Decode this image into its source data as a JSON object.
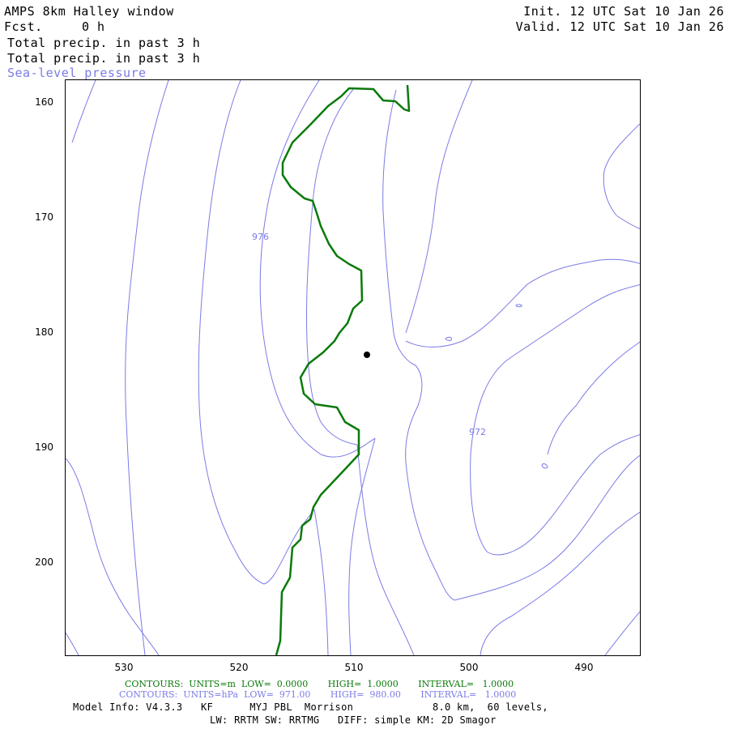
{
  "header": {
    "title": "AMPS 8km Halley window",
    "fcst_label": "Fcst.",
    "fcst_value": "0 h",
    "field1": "Total precip. in past 3 h",
    "field2": "Total precip. in past 3 h",
    "field3": "Sea-level pressure",
    "init": "Init. 12 UTC Sat 10 Jan 26",
    "valid": "Valid. 12 UTC Sat 10 Jan 26"
  },
  "axes": {
    "y_ticks": [
      "160",
      "170",
      "180",
      "190",
      "200"
    ],
    "x_ticks": [
      "530",
      "520",
      "510",
      "500",
      "490"
    ]
  },
  "contour_labels": {
    "pressure_976": "976",
    "pressure_972": "972"
  },
  "footer": {
    "contours_green": "CONTOURS:  UNITS=m  LOW=  0.0000       HIGH=  1.0000       INTERVAL=   1.0000",
    "contours_blue": "CONTOURS:  UNITS=hPa  LOW=  971.00       HIGH=  980.00       INTERVAL=   1.0000",
    "model_info": "Model Info: V4.3.3   KF      MYJ PBL  Morrison             8.0 km,  60 levels,",
    "model_info2": "LW: RRTM SW: RRTMG   DIFF: simple KM: 2D Smagor"
  },
  "colors": {
    "pressure_contour": "#7b7be6",
    "precip_contour": "#0a7a0a",
    "station": "#000000"
  }
}
